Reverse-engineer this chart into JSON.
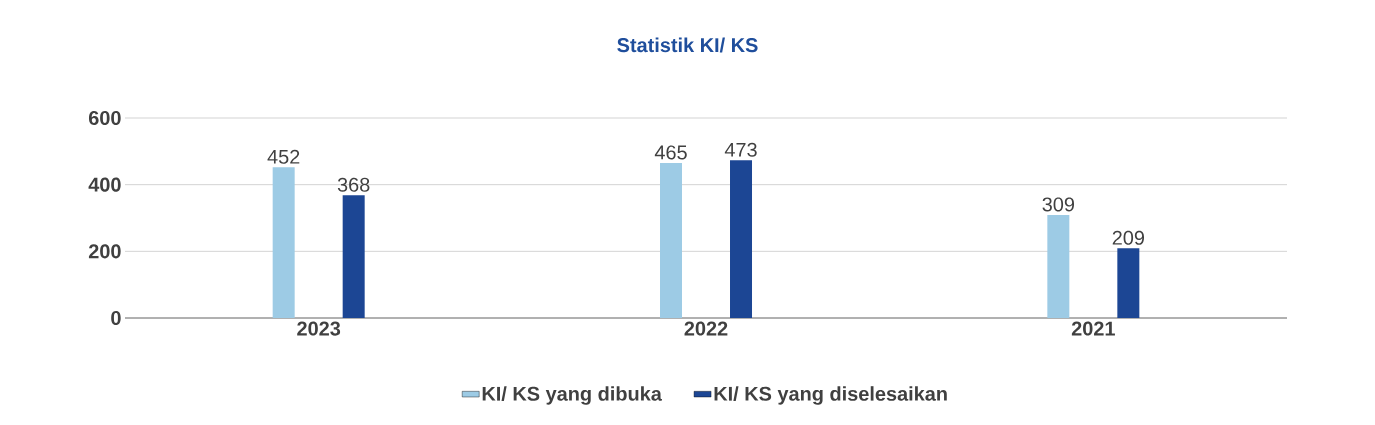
{
  "chart_data": {
    "type": "bar",
    "title": "Statistik KI/ KS",
    "categories": [
      "2023",
      "2022",
      "2021"
    ],
    "series": [
      {
        "name": "KI/ KS yang dibuka",
        "color": "#9dcbe5",
        "values": [
          452,
          465,
          309
        ]
      },
      {
        "name": "KI/ KS yang diselesaikan",
        "color": "#1c4694",
        "values": [
          368,
          473,
          209
        ]
      }
    ],
    "ylim": [
      0,
      600
    ],
    "yticks": [
      0,
      200,
      400,
      600
    ],
    "grid": "y",
    "legend": "bottom",
    "data_labels": true
  }
}
